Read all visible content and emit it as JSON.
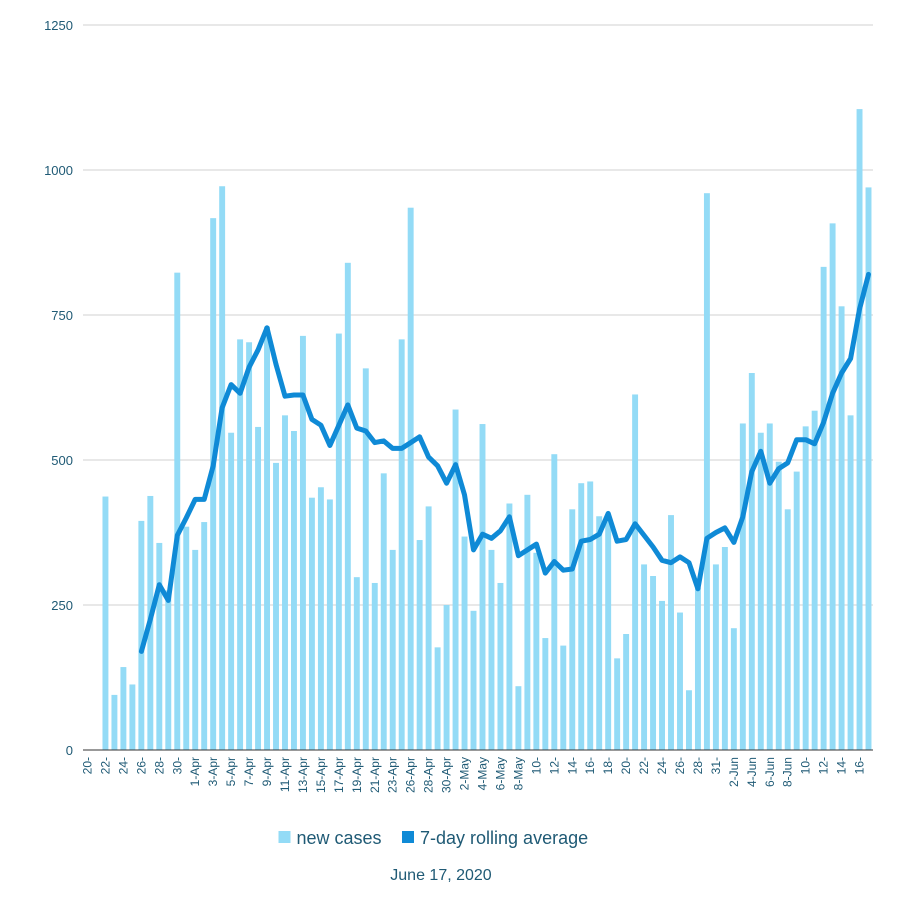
{
  "chart_data": {
    "type": "bar-line",
    "subtitle": "June 17, 2020",
    "categories": [
      "20-",
      null,
      "22-",
      null,
      "24-",
      null,
      "26-",
      null,
      "28-",
      null,
      "30-",
      null,
      "1-Apr",
      null,
      "3-Apr",
      null,
      "5-Apr",
      null,
      "7-Apr",
      null,
      "9-Apr",
      null,
      "11-Apr",
      null,
      "13-Apr",
      null,
      "15-Apr",
      null,
      "17-Apr",
      null,
      "19-Apr",
      null,
      "21-Apr",
      null,
      "23-Apr",
      null,
      "26-Apr",
      null,
      "28-Apr",
      null,
      "30-Apr",
      null,
      "2-May",
      null,
      "4-May",
      null,
      "6-May",
      null,
      "8-May",
      null,
      "10-",
      null,
      "12-",
      null,
      "14-",
      null,
      "16-",
      null,
      "18-",
      null,
      "20-",
      null,
      "22-",
      null,
      "24-",
      null,
      "26-",
      null,
      "28-",
      null,
      "31-",
      null,
      "2-Jun",
      null,
      "4-Jun",
      null,
      "6-Jun",
      null,
      "8-Jun",
      null,
      "10-",
      null,
      "12-",
      null,
      "14-",
      null,
      "16-",
      null
    ],
    "series": [
      {
        "name": "new cases",
        "type": "bar",
        "color": "#93dbf6",
        "values": [
          null,
          null,
          437,
          95,
          143,
          113,
          395,
          438,
          357,
          275,
          823,
          385,
          345,
          393,
          917,
          972,
          547,
          708,
          703,
          557,
          730,
          495,
          577,
          550,
          714,
          435,
          453,
          432,
          718,
          840,
          298,
          658,
          288,
          477,
          345,
          708,
          935,
          362,
          420,
          177,
          250,
          587,
          368,
          240,
          562,
          345,
          288,
          425,
          110,
          440,
          340,
          193,
          510,
          180,
          415,
          460,
          463,
          403,
          395,
          158,
          200,
          613,
          320,
          300,
          257,
          405,
          237,
          103,
          280,
          960,
          320,
          350,
          210,
          563,
          650,
          547,
          563,
          497,
          415,
          480,
          558,
          585,
          833,
          908,
          765,
          577,
          1105,
          970
        ]
      },
      {
        "name": "7-day rolling average",
        "type": "line",
        "color": "#0f8ad6",
        "values": [
          null,
          null,
          null,
          null,
          null,
          null,
          170,
          225,
          285,
          258,
          370,
          400,
          432,
          432,
          490,
          590,
          630,
          615,
          660,
          690,
          728,
          665,
          610,
          612,
          612,
          570,
          560,
          525,
          560,
          595,
          555,
          550,
          530,
          533,
          520,
          520,
          530,
          540,
          505,
          490,
          460,
          492,
          440,
          345,
          372,
          365,
          378,
          402,
          335,
          345,
          355,
          305,
          325,
          310,
          312,
          360,
          363,
          372,
          408,
          360,
          363,
          390,
          370,
          350,
          327,
          323,
          333,
          323,
          278,
          365,
          375,
          383,
          358,
          402,
          480,
          515,
          460,
          485,
          495,
          535,
          535,
          528,
          565,
          615,
          650,
          675,
          760,
          820
        ]
      }
    ],
    "ylim": [
      0,
      1250
    ],
    "yticks": [
      0,
      250,
      500,
      750,
      1000,
      1250
    ],
    "grid": true,
    "legend": "bottom"
  }
}
